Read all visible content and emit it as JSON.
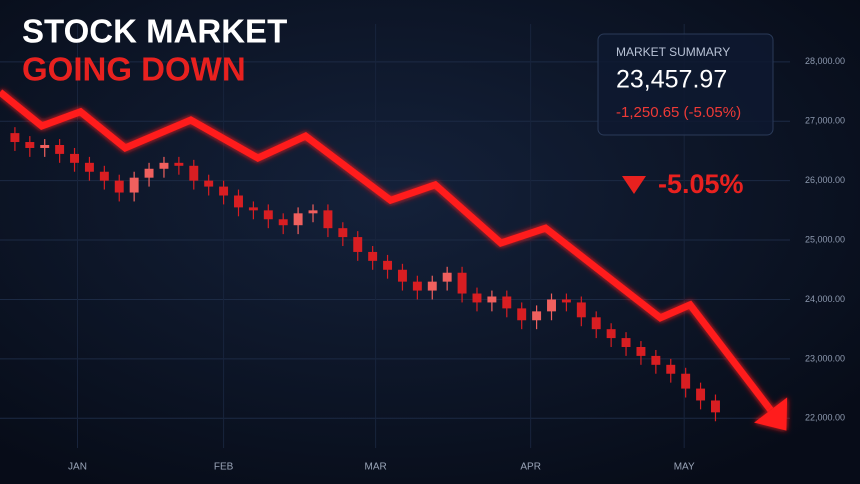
{
  "chart_data": {
    "type": "candlestick",
    "title": "STOCK MARKET",
    "subtitle": "GOING DOWN",
    "x": [
      0,
      1,
      2,
      3,
      4,
      5,
      6,
      7,
      8,
      9,
      10,
      11,
      12,
      13,
      14,
      15,
      16,
      17,
      18,
      19,
      20,
      21,
      22,
      23,
      24,
      25,
      26,
      27,
      28,
      29,
      30,
      31,
      32,
      33,
      34,
      35,
      36,
      37,
      38,
      39,
      40,
      41,
      42,
      43,
      44,
      45,
      46,
      47
    ],
    "open": [
      26800,
      26650,
      26550,
      26600,
      26450,
      26300,
      26150,
      26000,
      25800,
      26050,
      26200,
      26300,
      26250,
      26000,
      25900,
      25750,
      25550,
      25500,
      25350,
      25250,
      25450,
      25500,
      25200,
      25050,
      24800,
      24650,
      24500,
      24300,
      24150,
      24300,
      24450,
      24100,
      23950,
      24050,
      23850,
      23650,
      23800,
      24000,
      23950,
      23700,
      23500,
      23350,
      23200,
      23050,
      22900,
      22750,
      22500,
      22300
    ],
    "high": [
      26900,
      26750,
      26700,
      26700,
      26550,
      26400,
      26250,
      26100,
      26150,
      26300,
      26400,
      26400,
      26350,
      26100,
      26000,
      25850,
      25650,
      25600,
      25450,
      25550,
      25600,
      25600,
      25300,
      25150,
      24900,
      24750,
      24600,
      24400,
      24400,
      24550,
      24550,
      24200,
      24150,
      24150,
      23950,
      23900,
      24100,
      24100,
      24050,
      23800,
      23600,
      23450,
      23300,
      23150,
      23000,
      22850,
      22600,
      22400
    ],
    "low": [
      26500,
      26400,
      26400,
      26300,
      26150,
      26000,
      25850,
      25650,
      25650,
      25900,
      26050,
      26100,
      25850,
      25750,
      25600,
      25400,
      25350,
      25200,
      25100,
      25100,
      25300,
      25050,
      24900,
      24650,
      24500,
      24350,
      24150,
      24000,
      24000,
      24150,
      23950,
      23800,
      23800,
      23700,
      23500,
      23500,
      23650,
      23800,
      23550,
      23350,
      23200,
      23050,
      22900,
      22750,
      22600,
      22350,
      22150,
      21950
    ],
    "close": [
      26650,
      26550,
      26600,
      26450,
      26300,
      26150,
      26000,
      25800,
      26050,
      26200,
      26300,
      26250,
      26000,
      25900,
      25750,
      25550,
      25500,
      25350,
      25250,
      25450,
      25500,
      25200,
      25050,
      24800,
      24650,
      24500,
      24300,
      24150,
      24300,
      24450,
      24100,
      23950,
      24050,
      23850,
      23650,
      23800,
      24000,
      23950,
      23700,
      23500,
      23350,
      23200,
      23050,
      22900,
      22750,
      22500,
      22300,
      22100
    ],
    "up_color": "#f0605e",
    "down_color": "#d81e22",
    "trend": {
      "color": "#ff1a1a",
      "x": [
        -1,
        1.8,
        4.4,
        7.4,
        11.8,
        16.3,
        19.5,
        25.2,
        28.2,
        32.6,
        35.6,
        43.3,
        45.3,
        50.7
      ],
      "values": [
        27490,
        26920,
        27160,
        26550,
        27020,
        26380,
        26750,
        25670,
        25930,
        24950,
        25200,
        23690,
        23910,
        22140
      ]
    },
    "xlim": [
      -1,
      52
    ],
    "xticks": [
      {
        "value": 4.2,
        "label": "JAN"
      },
      {
        "value": 14.0,
        "label": "FEB"
      },
      {
        "value": 24.2,
        "label": "MAR"
      },
      {
        "value": 34.6,
        "label": "APR"
      },
      {
        "value": 44.9,
        "label": "MAY"
      }
    ],
    "ylim": [
      21500,
      28300
    ],
    "yticks": [
      {
        "value": 22000,
        "label": "22,000.00"
      },
      {
        "value": 23000,
        "label": "23,000.00"
      },
      {
        "value": 24000,
        "label": "24,000.00"
      },
      {
        "value": 25000,
        "label": "25,000.00"
      },
      {
        "value": 26000,
        "label": "26,000.00"
      },
      {
        "value": 27000,
        "label": "27,000.00"
      },
      {
        "value": 28000,
        "label": "28,000.00"
      }
    ],
    "grid": true
  },
  "summary": {
    "label": "MARKET SUMMARY",
    "value": "23,457.97",
    "change": "-1,250.65 (-5.05%)"
  },
  "badge": "-5.05%"
}
